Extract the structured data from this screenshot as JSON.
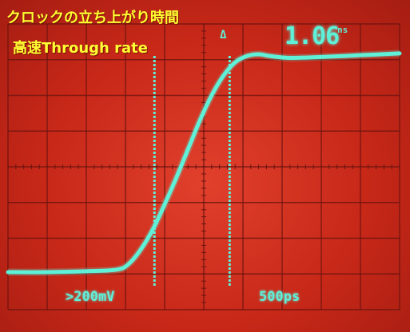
{
  "title": "クロックの立ち上がり時間",
  "subtitle": "高速Through rate",
  "readout": {
    "value": "1.06",
    "unit": "ns",
    "delta_symbol": "Δ"
  },
  "scale": {
    "volts_per_div": ">200mV",
    "time_per_div": "500ps"
  },
  "colors": {
    "trace": "#5ff0d8",
    "grid": "#6a1410",
    "background": "#c82818",
    "caption": "#ffff33"
  },
  "chart_data": {
    "type": "line",
    "title": "",
    "xlabel": "",
    "ylabel": "",
    "x_units": "ps",
    "y_units": "mV",
    "xlim": [
      0,
      5000
    ],
    "ylim": [
      0,
      1600
    ],
    "grid": true,
    "series": [
      {
        "name": "",
        "x": [
          0,
          500,
          1000,
          1400,
          1550,
          1700,
          1850,
          2000,
          2150,
          2300,
          2450,
          2600,
          2750,
          2900,
          3050,
          3200,
          3350,
          3600,
          4000,
          4500,
          5000
        ],
        "y": [
          210,
          210,
          215,
          225,
          260,
          340,
          450,
          590,
          740,
          900,
          1060,
          1200,
          1310,
          1385,
          1420,
          1430,
          1420,
          1410,
          1415,
          1425,
          1435
        ]
      }
    ],
    "cursors_x": [
      1870,
      2830
    ]
  }
}
